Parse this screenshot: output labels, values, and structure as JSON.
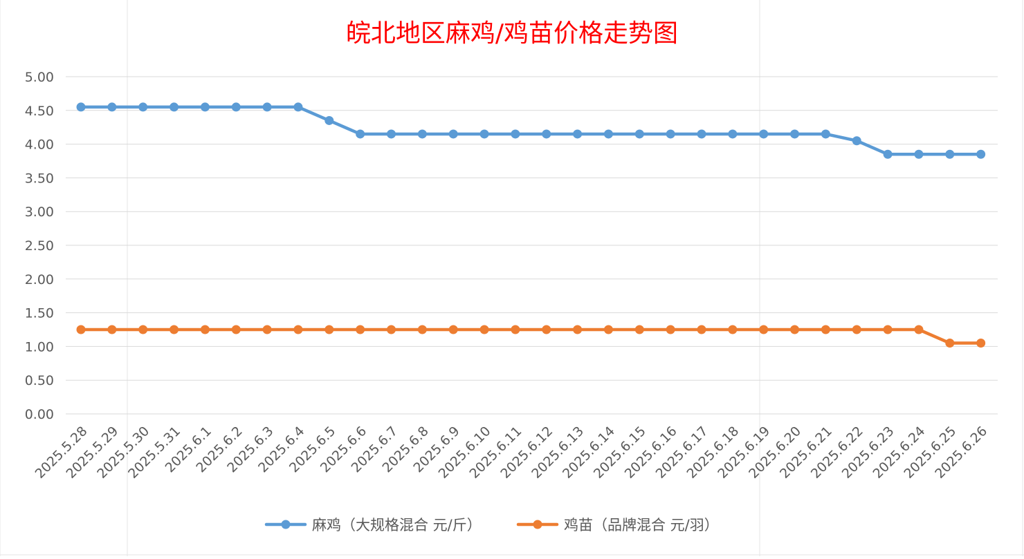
{
  "chart_data": {
    "type": "line",
    "title": "皖北地区麻鸡/鸡苗价格走势图",
    "xlabel": "",
    "ylabel": "",
    "categories": [
      "2025.5.28",
      "2025.5.29",
      "2025.5.30",
      "2025.5.31",
      "2025.6.1",
      "2025.6.2",
      "2025.6.3",
      "2025.6.4",
      "2025.6.5",
      "2025.6.6",
      "2025.6.7",
      "2025.6.8",
      "2025.6.9",
      "2025.6.10",
      "2025.6.11",
      "2025.6.12",
      "2025.6.13",
      "2025.6.14",
      "2025.6.15",
      "2025.6.16",
      "2025.6.17",
      "2025.6.18",
      "2025.6.19",
      "2025.6.20",
      "2025.6.21",
      "2025.6.22",
      "2025.6.23",
      "2025.6.24",
      "2025.6.25",
      "2025.6.26"
    ],
    "series": [
      {
        "name": "麻鸡（大规格混合 元/斤）",
        "color": "#5B9BD5",
        "values": [
          4.55,
          4.55,
          4.55,
          4.55,
          4.55,
          4.55,
          4.55,
          4.55,
          4.35,
          4.15,
          4.15,
          4.15,
          4.15,
          4.15,
          4.15,
          4.15,
          4.15,
          4.15,
          4.15,
          4.15,
          4.15,
          4.15,
          4.15,
          4.15,
          4.15,
          4.05,
          3.85,
          3.85,
          3.85,
          3.85
        ]
      },
      {
        "name": "鸡苗（品牌混合 元/羽）",
        "color": "#ED7D31",
        "values": [
          1.25,
          1.25,
          1.25,
          1.25,
          1.25,
          1.25,
          1.25,
          1.25,
          1.25,
          1.25,
          1.25,
          1.25,
          1.25,
          1.25,
          1.25,
          1.25,
          1.25,
          1.25,
          1.25,
          1.25,
          1.25,
          1.25,
          1.25,
          1.25,
          1.25,
          1.25,
          1.25,
          1.25,
          1.05,
          1.05
        ]
      }
    ],
    "ylim": [
      0,
      5
    ],
    "yticks": [
      "0.00",
      "0.50",
      "1.00",
      "1.50",
      "2.00",
      "2.50",
      "3.00",
      "3.50",
      "4.00",
      "4.50",
      "5.00"
    ],
    "grid": true,
    "legend_position": "bottom",
    "title_color": "#FF0000"
  }
}
